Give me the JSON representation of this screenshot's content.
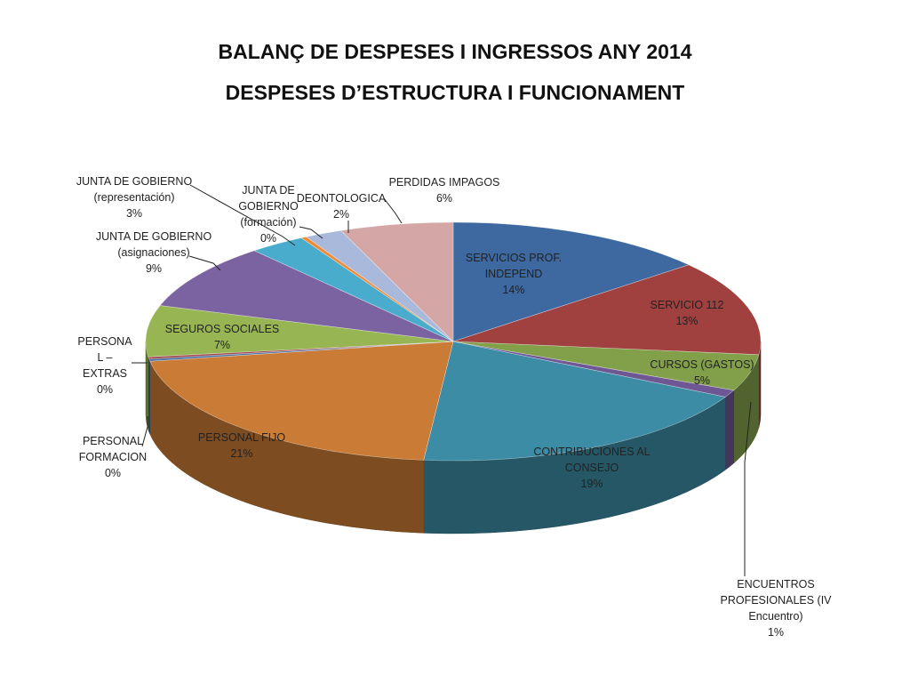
{
  "chart_data": {
    "type": "pie",
    "title": "BALANÇ DE DESPESES I INGRESSOS ANY 2014",
    "subtitle": "DESPESES D’ESTRUCTURA I FUNCIONAMENT",
    "legend": "none",
    "slices": [
      {
        "label_lines": [
          "SERVICIOS PROF.",
          "INDEPEND"
        ],
        "pct_label": "14%",
        "value": 14,
        "color": "#3d68a0"
      },
      {
        "label_lines": [
          "SERVICIO 112"
        ],
        "pct_label": "13%",
        "value": 13,
        "color": "#a04140"
      },
      {
        "label_lines": [
          "CURSOS (GASTOS)"
        ],
        "pct_label": "5%",
        "value": 5,
        "color": "#82a04a"
      },
      {
        "label_lines": [
          "ENCUENTROS",
          "PROFESIONALES (IV",
          "Encuentro)"
        ],
        "pct_label": "1%",
        "value": 1,
        "color": "#6e5793"
      },
      {
        "label_lines": [
          "CONTRIBUCIONES AL",
          "CONSEJO"
        ],
        "pct_label": "19%",
        "value": 19,
        "color": "#3c8ca5"
      },
      {
        "label_lines": [
          "PERSONAL FIJO"
        ],
        "pct_label": "21%",
        "value": 21,
        "color": "#ca7b35"
      },
      {
        "label_lines": [
          "PERSONAL",
          "FORMACION"
        ],
        "pct_label": "0%",
        "value": 0.3,
        "color": "#4a6fa0"
      },
      {
        "label_lines": [
          "PERSONA",
          "L –",
          "EXTRAS"
        ],
        "pct_label": "0%",
        "value": 0.3,
        "color": "#a04a52"
      },
      {
        "label_lines": [
          "SEGUROS SOCIALES"
        ],
        "pct_label": "7%",
        "value": 7,
        "color": "#97b653"
      },
      {
        "label_lines": [
          "JUNTA DE GOBIERNO",
          "(asignaciones)"
        ],
        "pct_label": "9%",
        "value": 9,
        "color": "#7b62a0"
      },
      {
        "label_lines": [
          "JUNTA DE GOBIERNO",
          "(representación)"
        ],
        "pct_label": "3%",
        "value": 3,
        "color": "#4aaccc"
      },
      {
        "label_lines": [
          "JUNTA DE",
          "GOBIERNO",
          "(formación)"
        ],
        "pct_label": "0%",
        "value": 0.3,
        "color": "#ee8a38"
      },
      {
        "label_lines": [
          "DEONTOLOGICA"
        ],
        "pct_label": "2%",
        "value": 2,
        "color": "#a9b9db"
      },
      {
        "label_lines": [
          "PERDIDAS IMPAGOS"
        ],
        "pct_label": "6%",
        "value": 6,
        "color": "#d4a6a6"
      }
    ]
  }
}
